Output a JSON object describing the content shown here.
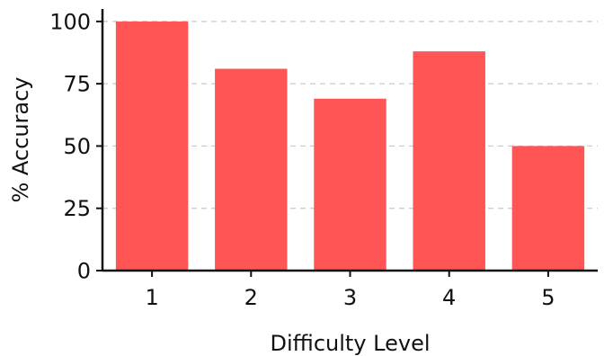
{
  "chart_data": {
    "type": "bar",
    "categories": [
      "1",
      "2",
      "3",
      "4",
      "5"
    ],
    "values": [
      100,
      81,
      69,
      88,
      50
    ],
    "xlabel": "Difficulty Level",
    "ylabel": "% Accuracy",
    "ylim": [
      0,
      105
    ],
    "yticks": [
      0,
      25,
      50,
      75,
      100
    ],
    "grid": true,
    "bar_color": "#ff5555",
    "grid_color": "#c8c8c8",
    "axis_color": "#111111"
  }
}
